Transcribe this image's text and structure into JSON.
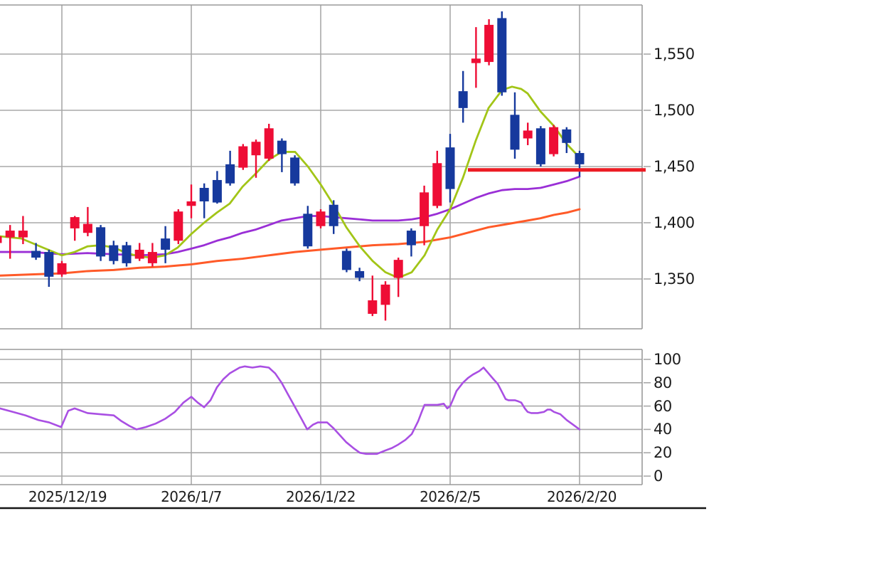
{
  "chart_data": {
    "type": "candlestick",
    "title": "",
    "legend": "none",
    "grid": "on",
    "panels": {
      "price": {
        "plot_x": [
          0,
          903
        ],
        "plot_y_top": 7,
        "plot_y_bottom": 462,
        "price_ref": [
          [
            1550,
            76
          ],
          [
            1350,
            392
          ]
        ],
        "gridline_prices": [
          1550,
          1500,
          1450,
          1400,
          1350
        ],
        "ylim_approx": [
          1306,
          1593
        ]
      },
      "oscillator": {
        "plot_x": [
          0,
          903
        ],
        "plot_y_top": 491,
        "plot_y_bottom": 681,
        "value_ref": [
          [
            0,
            669
          ],
          [
            100,
            505
          ]
        ],
        "gridline_values": [
          100,
          80,
          60,
          40,
          20,
          0
        ],
        "ylim": [
          0,
          100
        ]
      }
    },
    "x_axis": {
      "gridline_x": [
        87,
        269,
        451,
        633,
        815
      ],
      "labels": [
        "2025/12/19",
        "2026/1/7",
        "2026/1/22",
        "2026/2/5",
        "2026/2/20"
      ]
    },
    "candles": {
      "x0": -4,
      "dx": 18.2,
      "body_width": 13,
      "up_color": "#ee0d35",
      "down_color": "#16399d",
      "ohlc_order": [
        "open",
        "high",
        "low",
        "close"
      ],
      "ohlc": [
        [
          1382,
          1389,
          1380,
          1388
        ],
        [
          1387,
          1398,
          1368,
          1393
        ],
        [
          1387,
          1406,
          1381,
          1393
        ],
        [
          1375,
          1382,
          1367,
          1369
        ],
        [
          1374,
          1376,
          1343,
          1352
        ],
        [
          1354,
          1366,
          1352,
          1364
        ],
        [
          1395,
          1406,
          1384,
          1405
        ],
        [
          1391,
          1414,
          1388,
          1399
        ],
        [
          1396,
          1398,
          1366,
          1370
        ],
        [
          1380,
          1384,
          1363,
          1366
        ],
        [
          1380,
          1383,
          1361,
          1364
        ],
        [
          1368,
          1382,
          1366,
          1376
        ],
        [
          1364,
          1382,
          1361,
          1374
        ],
        [
          1386,
          1397,
          1364,
          1376
        ],
        [
          1384,
          1412,
          1381,
          1410
        ],
        [
          1415,
          1434,
          1404,
          1419
        ],
        [
          1431,
          1435,
          1404,
          1419
        ],
        [
          1438,
          1446,
          1417,
          1418
        ],
        [
          1452,
          1464,
          1433,
          1435
        ],
        [
          1449,
          1470,
          1447,
          1468
        ],
        [
          1460,
          1474,
          1440,
          1472
        ],
        [
          1457,
          1488,
          1455,
          1484
        ],
        [
          1473,
          1475,
          1445,
          1461
        ],
        [
          1458,
          1460,
          1433,
          1435
        ],
        [
          1408,
          1415,
          1377,
          1379
        ],
        [
          1397,
          1412,
          1395,
          1410
        ],
        [
          1416,
          1420,
          1390,
          1397
        ],
        [
          1375,
          1377,
          1356,
          1358
        ],
        [
          1357,
          1360,
          1348,
          1351
        ],
        [
          1319,
          1353,
          1317,
          1331
        ],
        [
          1327,
          1348,
          1313,
          1345
        ],
        [
          1351,
          1369,
          1334,
          1367
        ],
        [
          1393,
          1395,
          1370,
          1380
        ],
        [
          1397,
          1433,
          1380,
          1427
        ],
        [
          1415,
          1464,
          1413,
          1453
        ],
        [
          1467,
          1479,
          1418,
          1430
        ],
        [
          1517,
          1535,
          1489,
          1502
        ],
        [
          1542,
          1574,
          1520,
          1546
        ],
        [
          1543,
          1581,
          1540,
          1576
        ],
        [
          1582,
          1588,
          1513,
          1516
        ],
        [
          1496,
          1516,
          1457,
          1465
        ],
        [
          1475,
          1489,
          1469,
          1482
        ],
        [
          1484,
          1486,
          1450,
          1452
        ],
        [
          1461,
          1487,
          1459,
          1485
        ],
        [
          1483,
          1485,
          1462,
          1471
        ],
        [
          1462,
          1464,
          1441,
          1452
        ]
      ]
    },
    "ma_short": {
      "color": "#a2c517",
      "width": 2.8,
      "points": [
        [
          0,
          1388
        ],
        [
          30,
          1386
        ],
        [
          60,
          1378
        ],
        [
          87,
          1371
        ],
        [
          105,
          1374
        ],
        [
          123,
          1379
        ],
        [
          141,
          1380
        ],
        [
          160,
          1378
        ],
        [
          178,
          1373
        ],
        [
          196,
          1370
        ],
        [
          214,
          1369
        ],
        [
          232,
          1371
        ],
        [
          250,
          1378
        ],
        [
          269,
          1390
        ],
        [
          287,
          1400
        ],
        [
          305,
          1409
        ],
        [
          323,
          1417
        ],
        [
          341,
          1432
        ],
        [
          360,
          1444
        ],
        [
          378,
          1456
        ],
        [
          396,
          1463
        ],
        [
          415,
          1463
        ],
        [
          433,
          1450
        ],
        [
          451,
          1434
        ],
        [
          469,
          1416
        ],
        [
          487,
          1396
        ],
        [
          506,
          1379
        ],
        [
          524,
          1366
        ],
        [
          542,
          1356
        ],
        [
          560,
          1351
        ],
        [
          579,
          1356
        ],
        [
          597,
          1371
        ],
        [
          615,
          1394
        ],
        [
          633,
          1412
        ],
        [
          651,
          1440
        ],
        [
          669,
          1473
        ],
        [
          687,
          1502
        ],
        [
          706,
          1518
        ],
        [
          720,
          1521
        ],
        [
          733,
          1519
        ],
        [
          742,
          1515
        ],
        [
          760,
          1499
        ],
        [
          779,
          1486
        ],
        [
          797,
          1470
        ],
        [
          815,
          1458
        ]
      ]
    },
    "ma_mid": {
      "color": "#9a2fd6",
      "width": 2.8,
      "points": [
        [
          0,
          1374
        ],
        [
          44,
          1374
        ],
        [
          87,
          1372
        ],
        [
          123,
          1373
        ],
        [
          160,
          1372
        ],
        [
          196,
          1371
        ],
        [
          232,
          1372
        ],
        [
          250,
          1374
        ],
        [
          269,
          1377
        ],
        [
          287,
          1380
        ],
        [
          305,
          1384
        ],
        [
          323,
          1387
        ],
        [
          341,
          1391
        ],
        [
          360,
          1394
        ],
        [
          378,
          1398
        ],
        [
          396,
          1402
        ],
        [
          415,
          1404
        ],
        [
          433,
          1406
        ],
        [
          451,
          1406
        ],
        [
          469,
          1405
        ],
        [
          487,
          1404
        ],
        [
          506,
          1403
        ],
        [
          524,
          1402
        ],
        [
          542,
          1402
        ],
        [
          560,
          1402
        ],
        [
          579,
          1403
        ],
        [
          597,
          1405
        ],
        [
          615,
          1408
        ],
        [
          633,
          1412
        ],
        [
          651,
          1417
        ],
        [
          669,
          1422
        ],
        [
          687,
          1426
        ],
        [
          706,
          1429
        ],
        [
          724,
          1430
        ],
        [
          742,
          1430
        ],
        [
          760,
          1431
        ],
        [
          779,
          1434
        ],
        [
          797,
          1437
        ],
        [
          815,
          1441
        ]
      ]
    },
    "ma_long": {
      "color": "#ff5a28",
      "width": 3,
      "points": [
        [
          0,
          1353
        ],
        [
          44,
          1354
        ],
        [
          87,
          1355
        ],
        [
          123,
          1357
        ],
        [
          160,
          1358
        ],
        [
          196,
          1360
        ],
        [
          232,
          1361
        ],
        [
          269,
          1363
        ],
        [
          305,
          1366
        ],
        [
          341,
          1368
        ],
        [
          378,
          1371
        ],
        [
          415,
          1374
        ],
        [
          451,
          1376
        ],
        [
          487,
          1378
        ],
        [
          524,
          1380
        ],
        [
          560,
          1381
        ],
        [
          597,
          1383
        ],
        [
          633,
          1387
        ],
        [
          651,
          1390
        ],
        [
          669,
          1393
        ],
        [
          687,
          1396
        ],
        [
          706,
          1398
        ],
        [
          724,
          1400
        ],
        [
          742,
          1402
        ],
        [
          760,
          1404
        ],
        [
          779,
          1407
        ],
        [
          797,
          1409
        ],
        [
          815,
          1412
        ]
      ]
    },
    "support_line": {
      "color": "#ec1c24",
      "price": 1447,
      "x": [
        658,
        908
      ],
      "width": 5
    },
    "oscillator_line": {
      "color": "#a94fe3",
      "width": 2.6,
      "points": [
        [
          0,
          58
        ],
        [
          18,
          55
        ],
        [
          36,
          52
        ],
        [
          54,
          48
        ],
        [
          69,
          46
        ],
        [
          86,
          42
        ],
        [
          96,
          56
        ],
        [
          105,
          58
        ],
        [
          123,
          54
        ],
        [
          141,
          53
        ],
        [
          160,
          52
        ],
        [
          171,
          47
        ],
        [
          182,
          43
        ],
        [
          192,
          40
        ],
        [
          205,
          42
        ],
        [
          219,
          45
        ],
        [
          232,
          49
        ],
        [
          246,
          55
        ],
        [
          258,
          63
        ],
        [
          269,
          68
        ],
        [
          278,
          63
        ],
        [
          287,
          59
        ],
        [
          296,
          65
        ],
        [
          305,
          76
        ],
        [
          314,
          83
        ],
        [
          323,
          88
        ],
        [
          337,
          93
        ],
        [
          344,
          94
        ],
        [
          355,
          93
        ],
        [
          366,
          94
        ],
        [
          378,
          93
        ],
        [
          387,
          88
        ],
        [
          396,
          80
        ],
        [
          405,
          70
        ],
        [
          415,
          59
        ],
        [
          424,
          49
        ],
        [
          432,
          40
        ],
        [
          440,
          44
        ],
        [
          447,
          46
        ],
        [
          460,
          46
        ],
        [
          469,
          41
        ],
        [
          478,
          35
        ],
        [
          487,
          29
        ],
        [
          497,
          24
        ],
        [
          506,
          20
        ],
        [
          515,
          19
        ],
        [
          530,
          19
        ],
        [
          542,
          22
        ],
        [
          551,
          24
        ],
        [
          560,
          27
        ],
        [
          570,
          31
        ],
        [
          579,
          36
        ],
        [
          588,
          47
        ],
        [
          593,
          55
        ],
        [
          597,
          61
        ],
        [
          606,
          61
        ],
        [
          615,
          61
        ],
        [
          624,
          62
        ],
        [
          629,
          58
        ],
        [
          633,
          60
        ],
        [
          638,
          67
        ],
        [
          642,
          73
        ],
        [
          651,
          80
        ],
        [
          658,
          84
        ],
        [
          665,
          87
        ],
        [
          674,
          90
        ],
        [
          680,
          93
        ],
        [
          687,
          88
        ],
        [
          694,
          83
        ],
        [
          700,
          79
        ],
        [
          706,
          72
        ],
        [
          711,
          66
        ],
        [
          715,
          65
        ],
        [
          724,
          65
        ],
        [
          729,
          64
        ],
        [
          733,
          63
        ],
        [
          738,
          58
        ],
        [
          742,
          55
        ],
        [
          747,
          54
        ],
        [
          756,
          54
        ],
        [
          765,
          55
        ],
        [
          770,
          57
        ],
        [
          774,
          57
        ],
        [
          779,
          55
        ],
        [
          788,
          53
        ],
        [
          797,
          48
        ],
        [
          806,
          44
        ],
        [
          815,
          40
        ]
      ]
    },
    "baseline": {
      "color": "#161616",
      "y": 714,
      "x": [
        0,
        993
      ],
      "width": 2.6
    },
    "grid_color": "#a8a8a8",
    "border_color": "#9a9a9a"
  },
  "axes": {
    "price": [
      "1,550",
      "1,500",
      "1,450",
      "1,400",
      "1,350"
    ],
    "oscillator": [
      "100",
      "80",
      "60",
      "40",
      "20",
      "0"
    ],
    "dates": [
      "2025/12/19",
      "2026/1/7",
      "2026/1/22",
      "2026/2/5",
      "2026/2/20"
    ]
  }
}
